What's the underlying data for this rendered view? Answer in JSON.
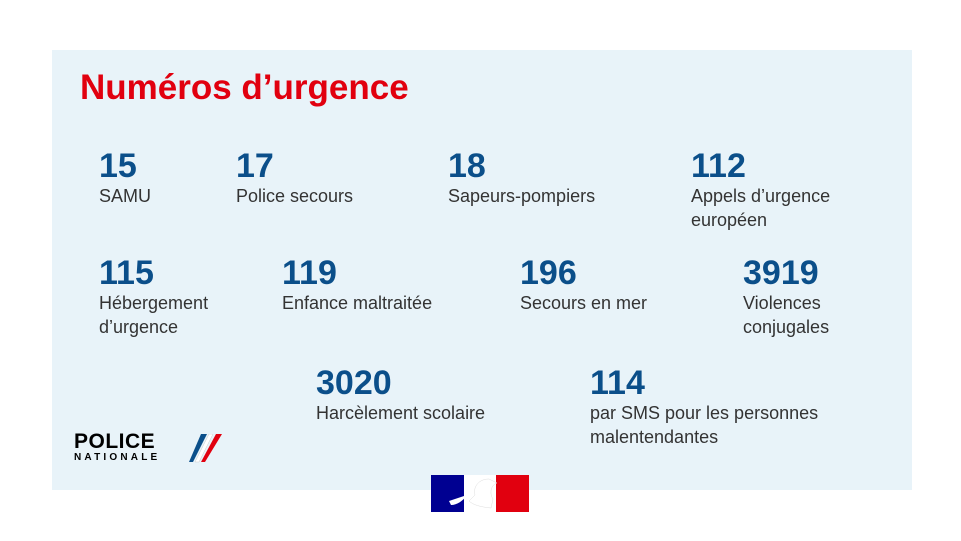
{
  "title": "Numéros d’urgence",
  "numbers": [
    {
      "number": 15,
      "label": [
        "SAMU"
      ]
    },
    {
      "number": 17,
      "label": [
        "Police secours"
      ]
    },
    {
      "number": 18,
      "label": [
        "Sapeurs-pompiers"
      ]
    },
    {
      "number": 112,
      "label": [
        "Appels d’urgence",
        "européen"
      ]
    },
    {
      "number": 115,
      "label": [
        "Hébergement",
        "d’urgence"
      ]
    },
    {
      "number": 119,
      "label": [
        "Enfance maltraitée"
      ]
    },
    {
      "number": 196,
      "label": [
        "Secours en mer"
      ]
    },
    {
      "number": 3919,
      "label": [
        "Violences",
        "conjugales"
      ]
    },
    {
      "number": 3020,
      "label": [
        "Harcèlement scolaire"
      ]
    },
    {
      "number": 114,
      "label": [
        "par SMS pour les personnes",
        "malentendantes"
      ]
    }
  ],
  "logo": {
    "line1": "POLICE",
    "line2": "NATIONALE"
  }
}
